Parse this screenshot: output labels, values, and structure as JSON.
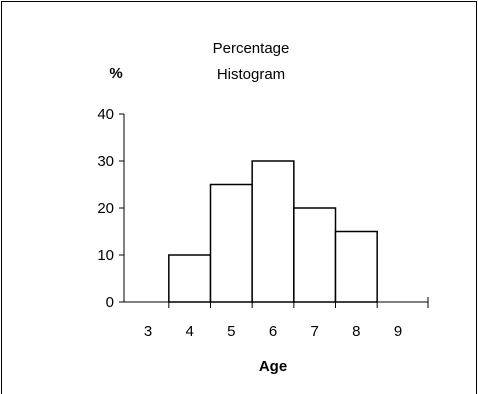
{
  "chart_data": {
    "type": "bar",
    "title": "Percentage Histogram",
    "title_lines": [
      "Percentage",
      "Histogram"
    ],
    "ylabel": "%",
    "xlabel": "Age",
    "ylim": [
      0,
      40
    ],
    "yticks": [
      0,
      10,
      20,
      30,
      40
    ],
    "xlim": [
      3,
      9
    ],
    "xticks": [
      3,
      4,
      5,
      6,
      7,
      8,
      9
    ],
    "bins": [
      [
        3.5,
        4.5
      ],
      [
        4.5,
        5.5
      ],
      [
        5.5,
        6.5
      ],
      [
        6.5,
        7.5
      ],
      [
        7.5,
        8.5
      ]
    ],
    "values": [
      10,
      25,
      30,
      20,
      15
    ],
    "grid": false,
    "legend": "none"
  }
}
